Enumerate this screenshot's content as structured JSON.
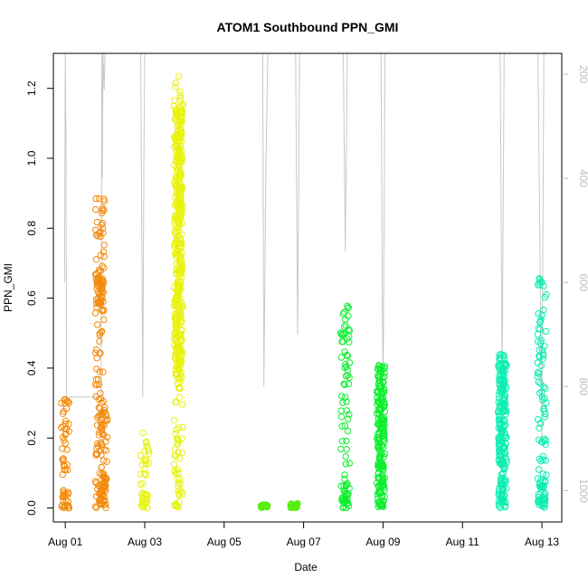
{
  "chart_data": {
    "type": "scatter",
    "title": "ATOM1 Southbound PPN_GMI",
    "xlabel": "Date",
    "ylabel": "PPN_GMI",
    "x_range_days": [
      -0.3,
      12.5
    ],
    "x_ticks": [
      {
        "day": 0,
        "label": "Aug 01"
      },
      {
        "day": 2,
        "label": "Aug 03"
      },
      {
        "day": 4,
        "label": "Aug 05"
      },
      {
        "day": 6,
        "label": "Aug 07"
      },
      {
        "day": 8,
        "label": "Aug 09"
      },
      {
        "day": 10,
        "label": "Aug 11"
      },
      {
        "day": 12,
        "label": "Aug 13"
      }
    ],
    "ylim": [
      -0.04,
      1.3
    ],
    "y_ticks": [
      0.0,
      0.2,
      0.4,
      0.6,
      0.8,
      1.0,
      1.2
    ],
    "y_tick_labels": [
      "0.0",
      "0.2",
      "0.4",
      "0.6",
      "0.8",
      "1.0",
      "1.2"
    ],
    "right_axis": {
      "label": "",
      "range": [
        160,
        1060
      ],
      "ticks": [
        200,
        400,
        600,
        800,
        1000
      ],
      "tick_labels": [
        "200",
        "400",
        "600",
        "800",
        "1000"
      ],
      "color": "#bdbdbd"
    },
    "grid": false,
    "legend": "none",
    "series": [
      {
        "color": "#F28A0D",
        "clusters": [
          {
            "day": 0.0,
            "y_min": 0.0,
            "y_max": 0.33,
            "dense_min": 0.0,
            "dense_max": 0.05
          },
          {
            "day": 0.87,
            "y_min": 0.0,
            "y_max": 0.89,
            "dense_min": 0.58,
            "dense_max": 0.66
          },
          {
            "day": 0.95,
            "y_min": 0.0,
            "y_max": 0.33,
            "dense_min": 0.0,
            "dense_max": 0.1
          }
        ]
      },
      {
        "color": "#E8F20D",
        "clusters": [
          {
            "day": 2.0,
            "y_min": 0.0,
            "y_max": 0.22,
            "dense_min": 0.0,
            "dense_max": 0.04
          },
          {
            "day": 2.85,
            "y_min": 0.0,
            "y_max": 1.24,
            "dense_min": 0.37,
            "dense_max": 1.15
          }
        ]
      },
      {
        "color": "#55EE0D",
        "clusters": [
          {
            "day": 5.0,
            "y_min": 0.0,
            "y_max": 0.01,
            "dense_min": 0.0,
            "dense_max": 0.01
          },
          {
            "day": 5.75,
            "y_min": 0.0,
            "y_max": 0.015,
            "dense_min": 0.0,
            "dense_max": 0.01
          }
        ]
      },
      {
        "color": "#0DEE2E",
        "clusters": [
          {
            "day": 7.05,
            "y_min": 0.0,
            "y_max": 0.58,
            "dense_min": 0.0,
            "dense_max": 0.05
          },
          {
            "day": 7.95,
            "y_min": 0.0,
            "y_max": 0.41,
            "dense_min": 0.0,
            "dense_max": 0.41
          }
        ]
      },
      {
        "color": "#0DEEB0",
        "clusters": [
          {
            "day": 11.0,
            "y_min": 0.0,
            "y_max": 0.44,
            "dense_min": 0.0,
            "dense_max": 0.44
          },
          {
            "day": 12.0,
            "y_min": 0.0,
            "y_max": 0.67,
            "dense_min": 0.0,
            "dense_max": 0.08
          }
        ]
      }
    ],
    "depth_trace": {
      "color": "#c8c8c8",
      "points": [
        [
          -0.02,
          600
        ],
        [
          0.0,
          160
        ],
        [
          0.02,
          340
        ],
        [
          0.03,
          820
        ],
        [
          0.9,
          820
        ],
        [
          0.92,
          160
        ],
        [
          0.93,
          400
        ],
        [
          0.95,
          160
        ],
        [
          0.98,
          230
        ],
        [
          1.0,
          160
        ],
        [
          1.9,
          160
        ],
        [
          1.95,
          820
        ],
        [
          1.98,
          360
        ],
        [
          2.0,
          160
        ],
        [
          2.6,
          160
        ],
        [
          2.8,
          160
        ],
        [
          3.0,
          160
        ],
        [
          4.97,
          160
        ],
        [
          5.0,
          800
        ],
        [
          5.05,
          380
        ],
        [
          5.1,
          160
        ],
        [
          5.8,
          160
        ],
        [
          5.85,
          700
        ],
        [
          5.9,
          160
        ],
        [
          6.0,
          160
        ],
        [
          7.0,
          160
        ],
        [
          7.05,
          540
        ],
        [
          7.1,
          160
        ],
        [
          7.6,
          160
        ],
        [
          7.95,
          160
        ],
        [
          8.0,
          850
        ],
        [
          8.05,
          160
        ],
        [
          8.3,
          160
        ],
        [
          10.95,
          160
        ],
        [
          11.0,
          780
        ],
        [
          11.05,
          160
        ],
        [
          11.9,
          160
        ],
        [
          12.0,
          900
        ],
        [
          12.05,
          160
        ]
      ]
    }
  }
}
